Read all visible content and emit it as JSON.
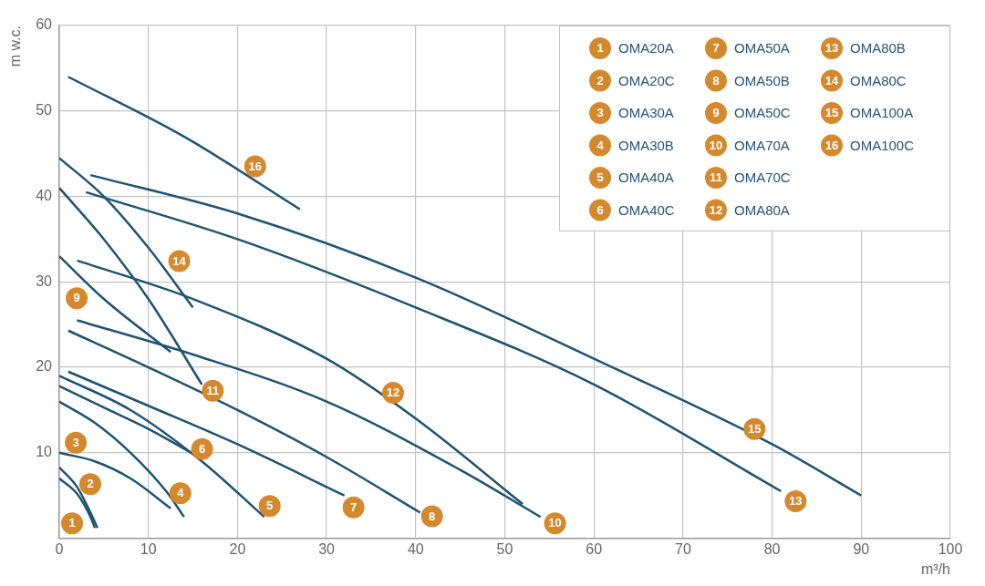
{
  "chart_data": {
    "type": "line",
    "xlabel": "m³/h",
    "ylabel": "m w.c.",
    "xlim": [
      0,
      100
    ],
    "xticks": [
      0,
      10,
      20,
      30,
      40,
      50,
      60,
      70,
      80,
      90,
      100
    ],
    "ylim": [
      0,
      60
    ],
    "yticks": [
      10,
      20,
      30,
      40,
      50,
      60
    ],
    "grid": true,
    "legend": "upper right",
    "series": [
      {
        "name": "OMA20A",
        "number": 1,
        "color": "#1f5371",
        "x": [
          0,
          2,
          3.5,
          4
        ],
        "values": [
          7,
          5.2,
          2.5,
          1.2
        ]
      },
      {
        "name": "OMA20C",
        "number": 2,
        "color": "#1f5371",
        "x": [
          0,
          2,
          3.5,
          4.3
        ],
        "values": [
          8.3,
          6,
          3,
          1.2
        ]
      },
      {
        "name": "OMA30A",
        "number": 3,
        "color": "#1f5371",
        "x": [
          0,
          4,
          8,
          12.5
        ],
        "values": [
          10,
          9,
          7,
          3.5
        ]
      },
      {
        "name": "OMA30B",
        "number": 4,
        "color": "#1f5371",
        "x": [
          0,
          4,
          8,
          12,
          14
        ],
        "values": [
          16,
          13.5,
          10,
          5.5,
          2.5
        ]
      },
      {
        "name": "OMA40A",
        "number": 5,
        "color": "#1f5371",
        "x": [
          0,
          8,
          16,
          23
        ],
        "values": [
          19,
          15,
          9,
          2.5
        ]
      },
      {
        "name": "OMA40C",
        "number": 6,
        "color": "#1f5371",
        "x": [
          0,
          5,
          10,
          14.8
        ],
        "values": [
          17.8,
          15.3,
          12.8,
          10
        ]
      },
      {
        "name": "OMA50A",
        "number": 7,
        "color": "#1f5371",
        "x": [
          1,
          10,
          20,
          32
        ],
        "values": [
          19.5,
          15.5,
          11,
          5
        ]
      },
      {
        "name": "OMA50B",
        "number": 8,
        "color": "#1f5371",
        "x": [
          1,
          10,
          20,
          30,
          40.5
        ],
        "values": [
          24.3,
          20,
          15,
          9.5,
          3
        ]
      },
      {
        "name": "OMA50C",
        "number": 9,
        "color": "#1f5371",
        "x": [
          0,
          5,
          12.5
        ],
        "values": [
          33,
          28,
          21.8
        ]
      },
      {
        "name": "OMA70A",
        "number": 10,
        "color": "#1f5371",
        "x": [
          2,
          15,
          30,
          45,
          54
        ],
        "values": [
          25.5,
          21.5,
          16,
          8,
          2.5
        ]
      },
      {
        "name": "OMA70C",
        "number": 11,
        "color": "#1f5371",
        "x": [
          0,
          5,
          10,
          16
        ],
        "values": [
          41,
          35,
          28,
          18
        ]
      },
      {
        "name": "OMA80A",
        "number": 12,
        "color": "#1f5371",
        "x": [
          2,
          15,
          30,
          40,
          52
        ],
        "values": [
          32.5,
          28,
          21,
          14,
          4
        ]
      },
      {
        "name": "OMA80B",
        "number": 13,
        "color": "#1f5371",
        "x": [
          3,
          20,
          40,
          60,
          81
        ],
        "values": [
          40.5,
          35,
          27,
          18,
          5.5
        ]
      },
      {
        "name": "OMA80C",
        "number": 14,
        "color": "#1f5371",
        "x": [
          0,
          5,
          10,
          15
        ],
        "values": [
          44.5,
          40,
          34,
          27
        ]
      },
      {
        "name": "OMA100A",
        "number": 15,
        "color": "#1f5371",
        "x": [
          3.5,
          20,
          40,
          60,
          80,
          90
        ],
        "values": [
          42.5,
          38,
          30.5,
          21,
          11,
          5
        ]
      },
      {
        "name": "OMA100C",
        "number": 16,
        "color": "#1f5371",
        "x": [
          1,
          14,
          27
        ],
        "values": [
          54,
          47,
          38.5
        ]
      }
    ]
  }
}
